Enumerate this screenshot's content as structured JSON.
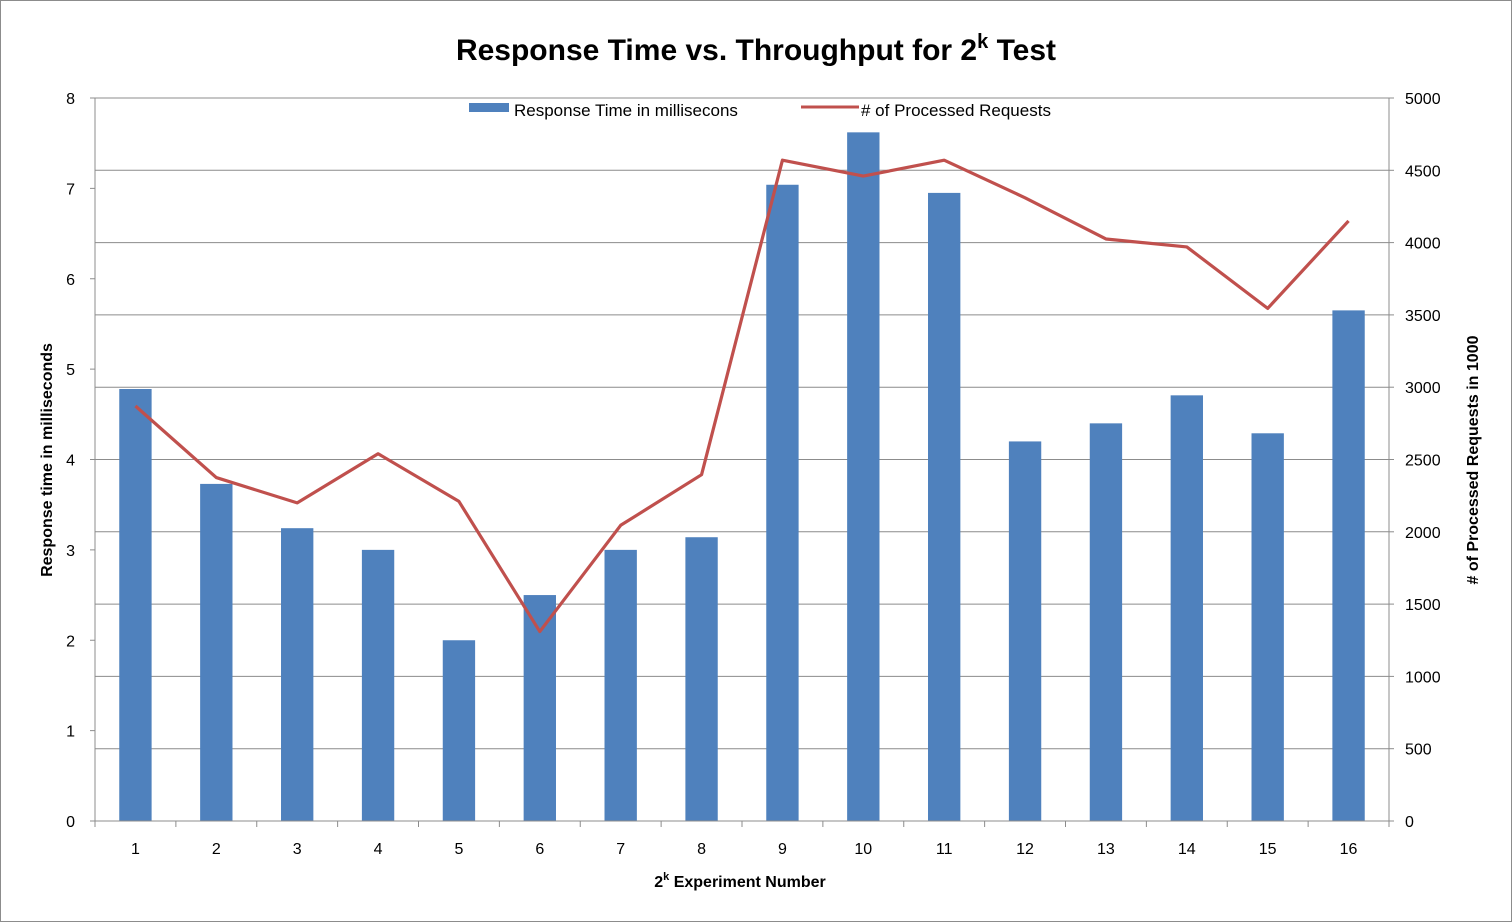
{
  "chart_data": {
    "type": "bar",
    "title": "Response Time vs. Throughput for 2",
    "title_superscript": "k",
    "title_suffix": " Test",
    "xlabel_prefix": "2",
    "xlabel_superscript": "k",
    "xlabel_suffix": " Experiment Number",
    "ylabel": "Response time in milliseconds",
    "y2label": "# of Processed Requests in 1000",
    "categories": [
      "1",
      "2",
      "3",
      "4",
      "5",
      "6",
      "7",
      "8",
      "9",
      "10",
      "11",
      "12",
      "13",
      "14",
      "15",
      "16"
    ],
    "ylim": [
      0,
      8
    ],
    "y_ticks": [
      0,
      1,
      2,
      3,
      4,
      5,
      6,
      7,
      8
    ],
    "y2lim": [
      0,
      5000
    ],
    "y2_ticks": [
      0,
      500,
      1000,
      1500,
      2000,
      2500,
      3000,
      3500,
      4000,
      4500,
      5000
    ],
    "grid": true,
    "legend_position": "top-center",
    "series": [
      {
        "name": "Response Time in millisecons",
        "type": "bar",
        "axis": "left",
        "color": "#4f81bd",
        "values": [
          4.78,
          3.73,
          3.24,
          3.0,
          2.0,
          2.5,
          3.0,
          3.14,
          7.04,
          7.62,
          6.95,
          4.2,
          4.4,
          4.71,
          4.29,
          5.65
        ]
      },
      {
        "name": "# of Processed Requests",
        "type": "line",
        "axis": "right",
        "color": "#c0504d",
        "values": [
          2870,
          2375,
          2200,
          2540,
          2210,
          1310,
          2045,
          2395,
          4570,
          4460,
          4570,
          4310,
          4025,
          3970,
          3545,
          4150
        ]
      }
    ]
  }
}
